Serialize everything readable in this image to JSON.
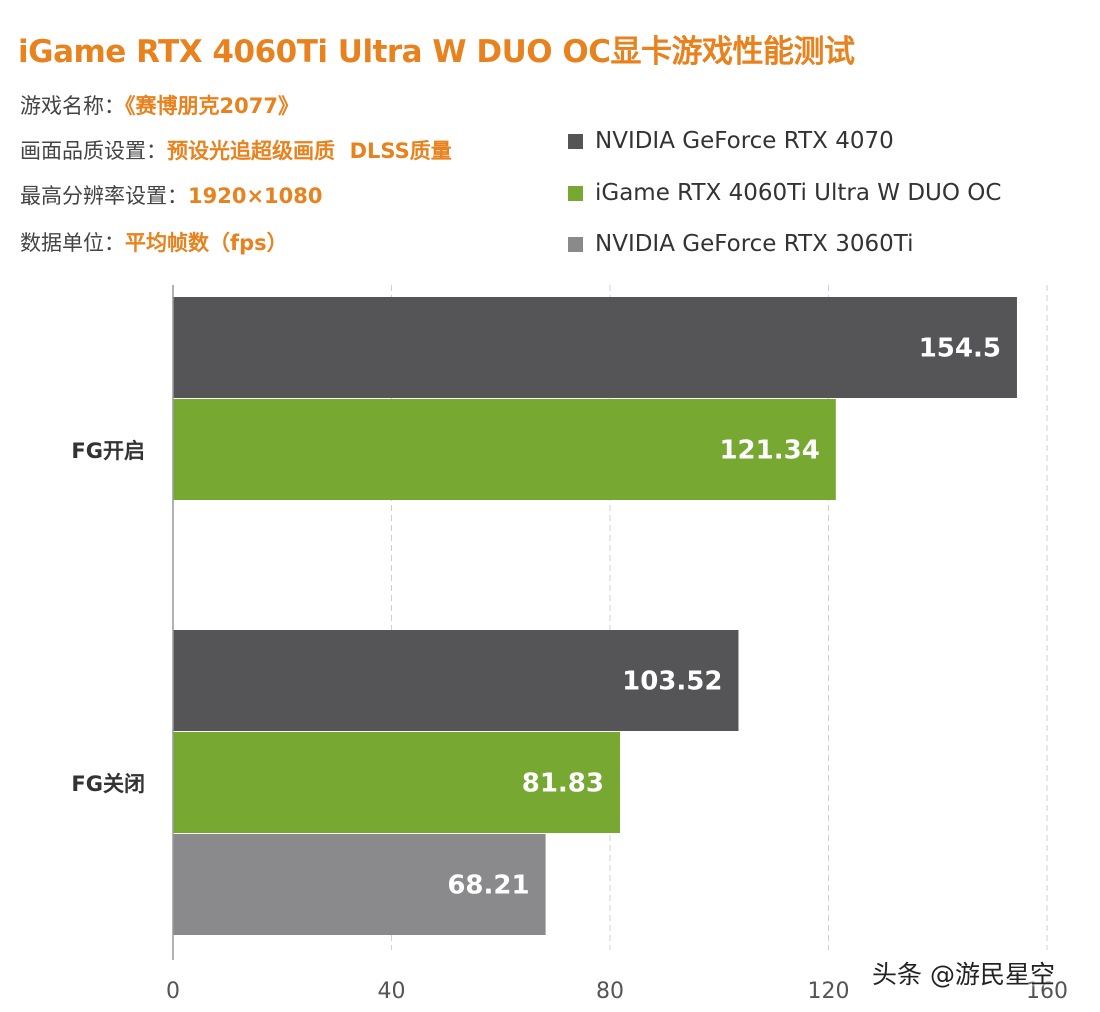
{
  "chart_data": {
    "type": "bar",
    "orientation": "horizontal",
    "title": "iGame RTX 4060Ti Ultra W DUO OC显卡游戏性能测试",
    "info": [
      {
        "label": "游戏名称：",
        "value": "《赛博朋克2077》"
      },
      {
        "label": "画面品质设置：",
        "value": "预设光追超级画质  DLSS质量"
      },
      {
        "label": "最高分辨率设置：",
        "value": "1920×1080"
      },
      {
        "label": "数据单位：",
        "value": "平均帧数（fps）"
      }
    ],
    "categories": [
      "FG开启",
      "FG关闭"
    ],
    "series": [
      {
        "name": "NVIDIA GeForce RTX 4070",
        "color": "#555558",
        "values": [
          154.5,
          103.52
        ],
        "labels": [
          "154.5",
          "103.52"
        ]
      },
      {
        "name": "iGame RTX 4060Ti Ultra W DUO OC",
        "color": "#76a832",
        "values": [
          121.34,
          81.83
        ],
        "labels": [
          "121.34",
          "81.83"
        ]
      },
      {
        "name": "NVIDIA GeForce RTX 3060Ti",
        "color": "#8a8a8c",
        "values": [
          null,
          68.21
        ],
        "labels": [
          "",
          "68.21"
        ]
      }
    ],
    "xlim": [
      0,
      160
    ],
    "xticks": [
      "0",
      "40",
      "80",
      "120",
      "160"
    ],
    "grid": true,
    "legend_position": "top-right",
    "title_color": "#e8821e"
  },
  "watermark": "头条 @游民星空"
}
